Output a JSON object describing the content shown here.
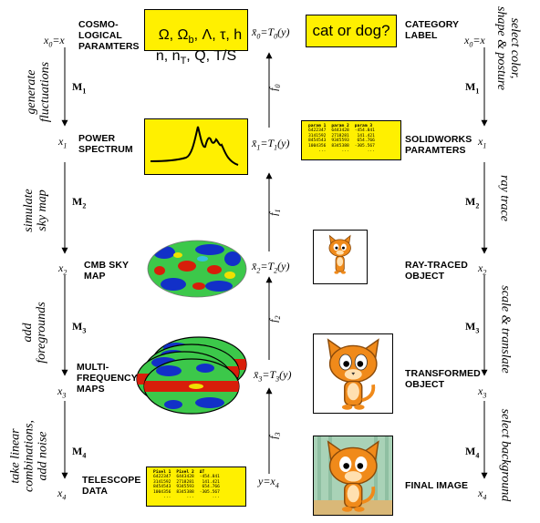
{
  "left": {
    "nodes": [
      {
        "var": "x",
        "sub": "0",
        "eq": "=x",
        "label": "COSMO-\nLOGICAL\nPARAMTERS"
      },
      {
        "var": "x",
        "sub": "1",
        "eq": "",
        "label": "POWER\nSPECTRUM"
      },
      {
        "var": "x",
        "sub": "2",
        "eq": "",
        "label": "CMB SKY\nMAP"
      },
      {
        "var": "x",
        "sub": "3",
        "eq": "",
        "label": "MULTI-\nFREQUENCY\nMAPS"
      },
      {
        "var": "x",
        "sub": "4",
        "eq": "",
        "label": "TELESCOPE\nDATA"
      }
    ],
    "operators": [
      {
        "name": "M",
        "sub": "1",
        "action": "generate\nfluctuations"
      },
      {
        "name": "M",
        "sub": "2",
        "action": "simulate\nsky map"
      },
      {
        "name": "M",
        "sub": "3",
        "action": "add\nforegrounds"
      },
      {
        "name": "M",
        "sub": "4",
        "action": "take linear\ncombinations,\nadd noise"
      }
    ],
    "params_box": {
      "line1": "Ω, Ω",
      "line1_sub": "b",
      "line1_rest": ", Λ, τ, h",
      "line2": "n, n",
      "line2_sub": "T",
      "line2_rest": ", Q, T/S"
    },
    "telescope_table": {
      "headers": [
        "Pixel 1",
        "Pixel 2",
        "ΔT"
      ],
      "rows": [
        [
          "6422347",
          "6443428",
          "-454.841"
        ],
        [
          "3141592",
          "2718281",
          "141.421"
        ],
        [
          "8454543",
          "9345593",
          "654.766"
        ],
        [
          "1004356",
          "8345388",
          "-305.567"
        ],
        [
          "...",
          "...",
          "..."
        ]
      ]
    }
  },
  "middle": {
    "estimates": [
      {
        "hat": "x̄",
        "sub": "0",
        "fn": "T",
        "fsub": "0",
        "arg": "(y)"
      },
      {
        "hat": "x̄",
        "sub": "1",
        "fn": "T",
        "fsub": "1",
        "arg": "(y)"
      },
      {
        "hat": "x̄",
        "sub": "2",
        "fn": "T",
        "fsub": "2",
        "arg": "(y)"
      },
      {
        "hat": "x̄",
        "sub": "3",
        "fn": "T",
        "fsub": "3",
        "arg": "(y)"
      }
    ],
    "bottom": "y=x",
    "bottom_sub": "4",
    "functions": [
      {
        "name": "f",
        "sub": "0"
      },
      {
        "name": "f",
        "sub": "1"
      },
      {
        "name": "f",
        "sub": "2"
      },
      {
        "name": "f",
        "sub": "3"
      }
    ]
  },
  "right": {
    "nodes": [
      {
        "var": "x",
        "sub": "0",
        "eq": "=x",
        "label": "CATEGORY\nLABEL"
      },
      {
        "var": "x",
        "sub": "1",
        "eq": "",
        "label": "SOLIDWORKS\nPARAMTERS"
      },
      {
        "var": "x",
        "sub": "2",
        "eq": "",
        "label": "RAY-TRACED\nOBJECT"
      },
      {
        "var": "x",
        "sub": "3",
        "eq": "",
        "label": "TRANSFORMED\nOBJECT"
      },
      {
        "var": "x",
        "sub": "4",
        "eq": "",
        "label": "FINAL IMAGE"
      }
    ],
    "operators": [
      {
        "name": "M",
        "sub": "1",
        "action": "select color,\nshape & posture"
      },
      {
        "name": "M",
        "sub": "2",
        "action": "ray trace"
      },
      {
        "name": "M",
        "sub": "3",
        "action": "scale & translate"
      },
      {
        "name": "M",
        "sub": "4",
        "action": "select background"
      }
    ],
    "category_box": "cat or dog?",
    "solidworks_table": {
      "headers": [
        "param 1",
        "param 2",
        "param 3"
      ],
      "rows": [
        [
          "6422347",
          "6443428",
          "-454.841"
        ],
        [
          "3141592",
          "2718281",
          "141.421"
        ],
        [
          "8454543",
          "9345593",
          "654.766"
        ],
        [
          "1004356",
          "8345388",
          "-305.567"
        ],
        [
          "...",
          "...",
          "..."
        ]
      ]
    }
  },
  "colors": {
    "highlight": "#fff000",
    "cmb_red": "#d81e0a",
    "cmb_blue": "#1230c8",
    "cmb_green": "#3cc84a",
    "cat_orange": "#f08a1a",
    "wall_green": "#a9d2b7"
  }
}
